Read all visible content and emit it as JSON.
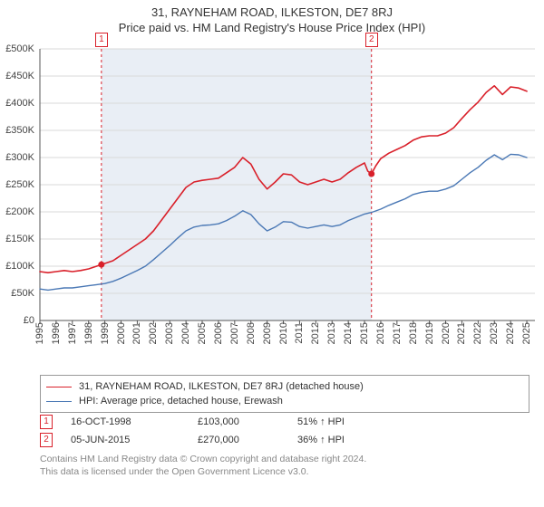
{
  "title_line1": "31, RAYNEHAM ROAD, ILKESTON, DE7 8RJ",
  "title_line2": "Price paid vs. HM Land Registry's House Price Index (HPI)",
  "chart": {
    "type": "line",
    "background_color": "#ffffff",
    "grid_color": "#d9d9d9",
    "axis_color": "#555555",
    "label_fontsize": 11,
    "y": {
      "min": 0,
      "max": 500000,
      "step": 50000,
      "prefix": "£",
      "suffix_k": "K",
      "ticks": [
        0,
        50000,
        100000,
        150000,
        200000,
        250000,
        300000,
        350000,
        400000,
        450000,
        500000
      ]
    },
    "x": {
      "min": 1995,
      "max": 2025.5,
      "ticks": [
        1995,
        1996,
        1997,
        1998,
        1999,
        2000,
        2001,
        2002,
        2003,
        2004,
        2005,
        2006,
        2007,
        2008,
        2009,
        2010,
        2011,
        2012,
        2013,
        2014,
        2015,
        2016,
        2017,
        2018,
        2019,
        2020,
        2021,
        2022,
        2023,
        2024,
        2025
      ]
    },
    "shaded_band": {
      "from_year": 1998.79,
      "to_year": 2015.43,
      "fill": "#e9eef5"
    },
    "series": [
      {
        "id": "price_paid",
        "label": "31, RAYNEHAM ROAD, ILKESTON, DE7 8RJ (detached house)",
        "color": "#d9202a",
        "line_width": 1.6,
        "points": [
          [
            1995.0,
            90000
          ],
          [
            1995.5,
            88000
          ],
          [
            1996.0,
            90000
          ],
          [
            1996.5,
            92000
          ],
          [
            1997.0,
            90000
          ],
          [
            1997.5,
            92000
          ],
          [
            1998.0,
            95000
          ],
          [
            1998.5,
            100000
          ],
          [
            1998.79,
            103000
          ],
          [
            1999.0,
            105000
          ],
          [
            1999.5,
            110000
          ],
          [
            2000.0,
            120000
          ],
          [
            2000.5,
            130000
          ],
          [
            2001.0,
            140000
          ],
          [
            2001.5,
            150000
          ],
          [
            2002.0,
            165000
          ],
          [
            2002.5,
            185000
          ],
          [
            2003.0,
            205000
          ],
          [
            2003.5,
            225000
          ],
          [
            2004.0,
            245000
          ],
          [
            2004.5,
            255000
          ],
          [
            2005.0,
            258000
          ],
          [
            2005.5,
            260000
          ],
          [
            2006.0,
            262000
          ],
          [
            2006.5,
            272000
          ],
          [
            2007.0,
            282000
          ],
          [
            2007.5,
            300000
          ],
          [
            2008.0,
            288000
          ],
          [
            2008.5,
            260000
          ],
          [
            2009.0,
            242000
          ],
          [
            2009.5,
            255000
          ],
          [
            2010.0,
            270000
          ],
          [
            2010.5,
            268000
          ],
          [
            2011.0,
            255000
          ],
          [
            2011.5,
            250000
          ],
          [
            2012.0,
            255000
          ],
          [
            2012.5,
            260000
          ],
          [
            2013.0,
            255000
          ],
          [
            2013.5,
            260000
          ],
          [
            2014.0,
            272000
          ],
          [
            2014.5,
            282000
          ],
          [
            2015.0,
            290000
          ],
          [
            2015.2,
            275000
          ],
          [
            2015.43,
            270000
          ],
          [
            2015.7,
            285000
          ],
          [
            2016.0,
            298000
          ],
          [
            2016.5,
            308000
          ],
          [
            2017.0,
            315000
          ],
          [
            2017.5,
            322000
          ],
          [
            2018.0,
            332000
          ],
          [
            2018.5,
            338000
          ],
          [
            2019.0,
            340000
          ],
          [
            2019.5,
            340000
          ],
          [
            2020.0,
            345000
          ],
          [
            2020.5,
            355000
          ],
          [
            2021.0,
            372000
          ],
          [
            2021.5,
            388000
          ],
          [
            2022.0,
            402000
          ],
          [
            2022.5,
            420000
          ],
          [
            2023.0,
            432000
          ],
          [
            2023.5,
            416000
          ],
          [
            2024.0,
            430000
          ],
          [
            2024.5,
            428000
          ],
          [
            2025.0,
            422000
          ]
        ]
      },
      {
        "id": "hpi",
        "label": "HPI: Average price, detached house, Erewash",
        "color": "#4a78b5",
        "line_width": 1.4,
        "points": [
          [
            1995.0,
            58000
          ],
          [
            1995.5,
            56000
          ],
          [
            1996.0,
            58000
          ],
          [
            1996.5,
            60000
          ],
          [
            1997.0,
            60000
          ],
          [
            1997.5,
            62000
          ],
          [
            1998.0,
            64000
          ],
          [
            1998.5,
            66000
          ],
          [
            1999.0,
            68000
          ],
          [
            1999.5,
            72000
          ],
          [
            2000.0,
            78000
          ],
          [
            2000.5,
            85000
          ],
          [
            2001.0,
            92000
          ],
          [
            2001.5,
            100000
          ],
          [
            2002.0,
            112000
          ],
          [
            2002.5,
            125000
          ],
          [
            2003.0,
            138000
          ],
          [
            2003.5,
            152000
          ],
          [
            2004.0,
            165000
          ],
          [
            2004.5,
            172000
          ],
          [
            2005.0,
            175000
          ],
          [
            2005.5,
            176000
          ],
          [
            2006.0,
            178000
          ],
          [
            2006.5,
            184000
          ],
          [
            2007.0,
            192000
          ],
          [
            2007.5,
            202000
          ],
          [
            2008.0,
            195000
          ],
          [
            2008.5,
            178000
          ],
          [
            2009.0,
            165000
          ],
          [
            2009.5,
            172000
          ],
          [
            2010.0,
            182000
          ],
          [
            2010.5,
            181000
          ],
          [
            2011.0,
            173000
          ],
          [
            2011.5,
            170000
          ],
          [
            2012.0,
            173000
          ],
          [
            2012.5,
            176000
          ],
          [
            2013.0,
            173000
          ],
          [
            2013.5,
            176000
          ],
          [
            2014.0,
            184000
          ],
          [
            2014.5,
            190000
          ],
          [
            2015.0,
            196000
          ],
          [
            2015.43,
            199000
          ],
          [
            2016.0,
            205000
          ],
          [
            2016.5,
            212000
          ],
          [
            2017.0,
            218000
          ],
          [
            2017.5,
            224000
          ],
          [
            2018.0,
            232000
          ],
          [
            2018.5,
            236000
          ],
          [
            2019.0,
            238000
          ],
          [
            2019.5,
            238000
          ],
          [
            2020.0,
            242000
          ],
          [
            2020.5,
            248000
          ],
          [
            2021.0,
            260000
          ],
          [
            2021.5,
            272000
          ],
          [
            2022.0,
            282000
          ],
          [
            2022.5,
            295000
          ],
          [
            2023.0,
            305000
          ],
          [
            2023.5,
            296000
          ],
          [
            2024.0,
            306000
          ],
          [
            2024.5,
            305000
          ],
          [
            2025.0,
            300000
          ]
        ]
      }
    ],
    "markers": [
      {
        "n": "1",
        "year": 1998.79,
        "value": 103000,
        "dash_color": "#d9202a",
        "border_color": "#d9202a"
      },
      {
        "n": "2",
        "year": 2015.43,
        "value": 270000,
        "dash_color": "#d9202a",
        "border_color": "#d9202a"
      }
    ],
    "marker_dot": {
      "radius": 3.5,
      "fill": "#d9202a"
    },
    "marker_line": {
      "dash": "3,3",
      "width": 1
    },
    "badge_top_offset": -4
  },
  "legend": {
    "border_color": "#999999",
    "items": [
      {
        "series": "price_paid"
      },
      {
        "series": "hpi"
      }
    ]
  },
  "events": [
    {
      "n": "1",
      "date": "16-OCT-1998",
      "price": "£103,000",
      "rel": "51% ↑ HPI",
      "border_color": "#d9202a"
    },
    {
      "n": "2",
      "date": "05-JUN-2015",
      "price": "£270,000",
      "rel": "36% ↑ HPI",
      "border_color": "#d9202a"
    }
  ],
  "footer": {
    "line1": "Contains HM Land Registry data © Crown copyright and database right 2024.",
    "line2": "This data is licensed under the Open Government Licence v3.0."
  }
}
